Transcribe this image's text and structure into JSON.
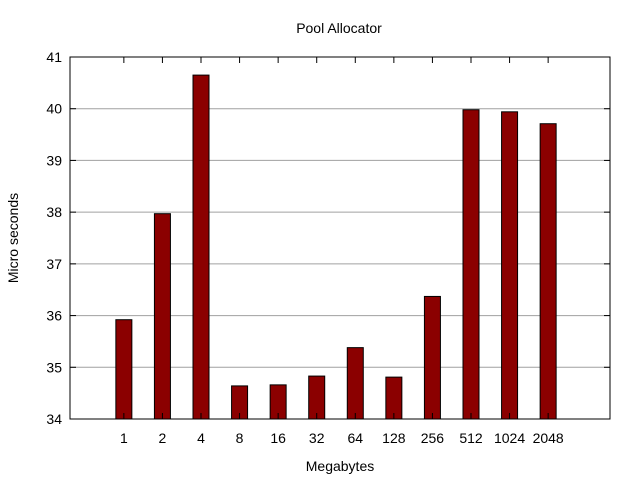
{
  "chart_data": {
    "type": "bar",
    "title": "Pool Allocator",
    "xlabel": "Megabytes",
    "ylabel": "Micro seconds",
    "ylim": [
      34,
      41
    ],
    "yticks": [
      34,
      35,
      36,
      37,
      38,
      39,
      40,
      41
    ],
    "grid": true,
    "legend": "none",
    "categories": [
      "1",
      "2",
      "4",
      "8",
      "16",
      "32",
      "64",
      "128",
      "256",
      "512",
      "1024",
      "2048"
    ],
    "values": [
      35.92,
      37.97,
      40.65,
      34.64,
      34.66,
      34.83,
      35.38,
      34.81,
      36.37,
      39.98,
      39.94,
      39.71
    ],
    "bar_color": "#8b0000",
    "grid_color": "#a0a0a0"
  }
}
